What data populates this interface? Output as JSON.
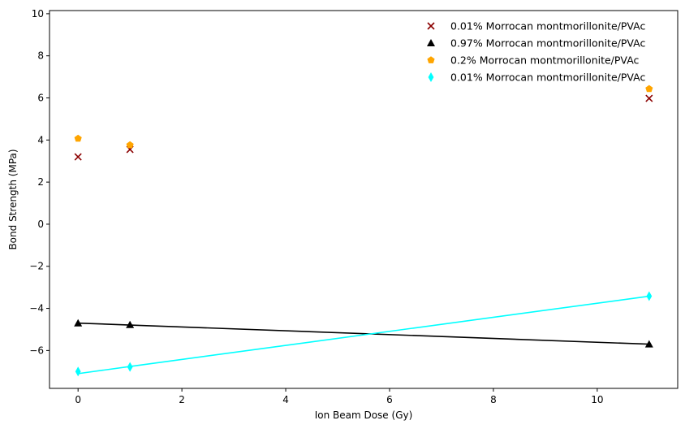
{
  "chart_data": {
    "type": "scatter",
    "title": "",
    "xlabel": "Ion Beam Dose (Gy)",
    "ylabel": "Bond Strength (MPa)",
    "xlim": [
      -0.55,
      11.55
    ],
    "ylim": [
      -7.8,
      10.15
    ],
    "xticks": [
      0,
      2,
      4,
      6,
      8,
      10
    ],
    "yticks": [
      -6,
      -4,
      -2,
      0,
      2,
      4,
      6,
      8,
      10
    ],
    "xtick_labels": [
      "0",
      "2",
      "4",
      "6",
      "8",
      "10"
    ],
    "ytick_labels": [
      "−6",
      "−4",
      "−2",
      "0",
      "2",
      "4",
      "6",
      "8",
      "10"
    ],
    "grid": false,
    "legend_position": "top-right",
    "series": [
      {
        "name": "0.01% Morrocan montmorillonite/PVAc",
        "marker": "x",
        "color": "#8b0000",
        "x": [
          0,
          1,
          11
        ],
        "y": [
          3.2,
          3.55,
          5.98
        ],
        "fit_line": false
      },
      {
        "name": "0.97% Morrocan montmorillonite/PVAc",
        "marker": "triangle",
        "color": "#000000",
        "x": [
          0,
          1,
          11
        ],
        "y": [
          -4.7,
          -4.78,
          -5.7
        ],
        "fit_line": true,
        "fit_y": [
          -4.7,
          -4.79,
          -5.7
        ]
      },
      {
        "name": "0.2% Morrocan montmorillonite/PVAc",
        "marker": "pentagon",
        "color": "#ffa500",
        "x": [
          0,
          1,
          11
        ],
        "y": [
          4.07,
          3.76,
          6.43
        ],
        "fit_line": false
      },
      {
        "name": "0.01% Morrocan montmorillonite/PVAc",
        "marker": "diamond",
        "color": "#00ffff",
        "x": [
          0,
          1,
          11
        ],
        "y": [
          -7.0,
          -6.78,
          -3.42
        ],
        "fit_line": true,
        "fit_y": [
          -7.1,
          -6.76,
          -3.42
        ]
      }
    ]
  }
}
